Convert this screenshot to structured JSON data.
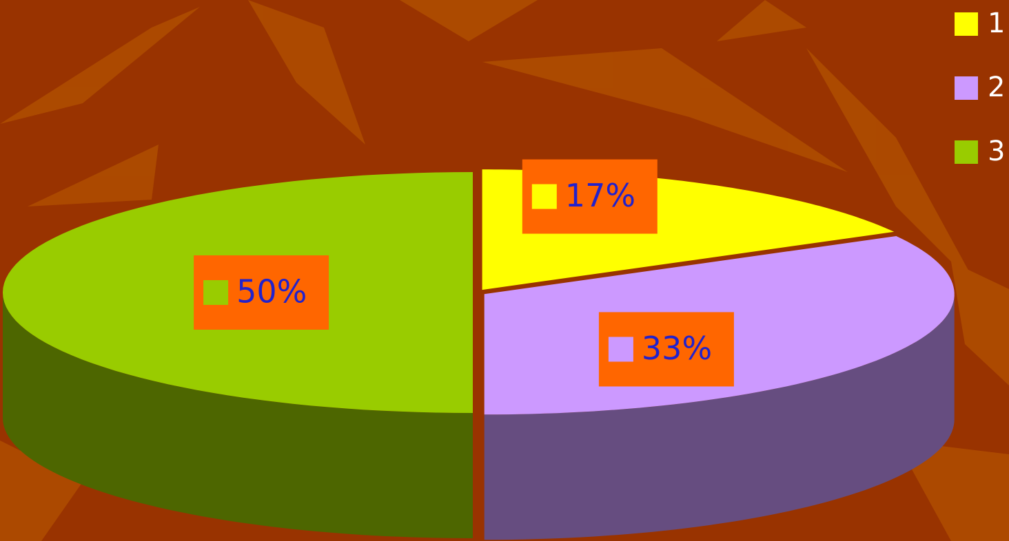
{
  "chart_data": {
    "type": "pie",
    "categories": [
      "1",
      "2",
      "3"
    ],
    "values": [
      17,
      33,
      50
    ],
    "value_labels": [
      "17%",
      "33%",
      "50%"
    ],
    "colors": [
      "#ffff00",
      "#cc99ff",
      "#99cc00"
    ],
    "legend": "top-right"
  }
}
